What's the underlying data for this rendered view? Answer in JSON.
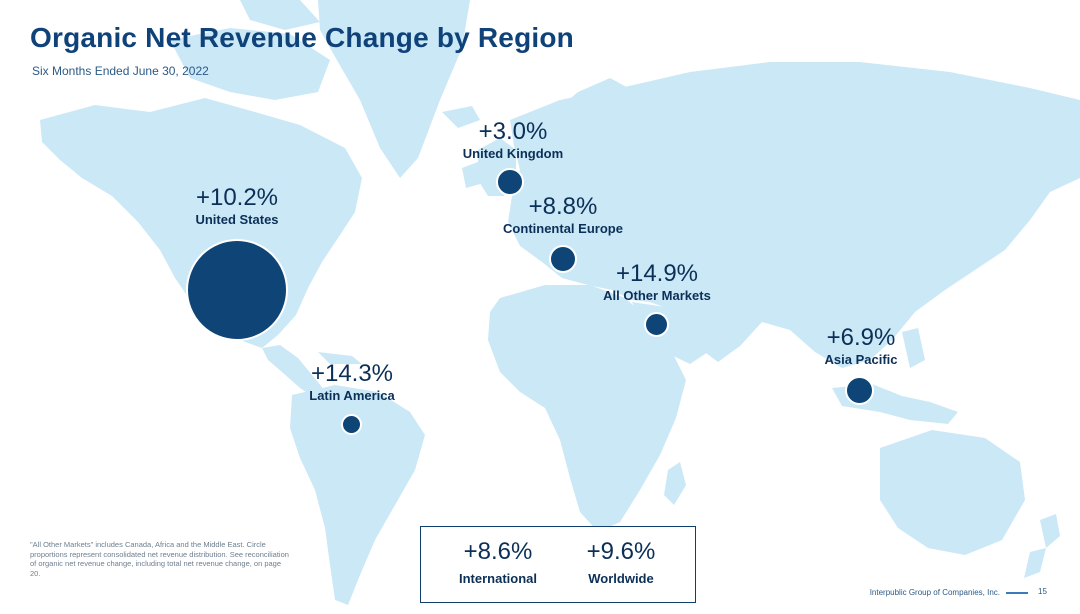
{
  "slide": {
    "title": "Organic Net Revenue Change by Region",
    "subtitle": "Six Months Ended June 30, 2022"
  },
  "regions": [
    {
      "id": "united-states",
      "name": "United States",
      "change": "+10.2%"
    },
    {
      "id": "united-kingdom",
      "name": "United Kingdom",
      "change": "+3.0%"
    },
    {
      "id": "continental-europe",
      "name": "Continental Europe",
      "change": "+8.8%"
    },
    {
      "id": "all-other-markets",
      "name": "All Other Markets",
      "change": "+14.9%"
    },
    {
      "id": "asia-pacific",
      "name": "Asia Pacific",
      "change": "+6.9%"
    },
    {
      "id": "latin-america",
      "name": "Latin America",
      "change": "+14.3%"
    }
  ],
  "totals": [
    {
      "name": "International",
      "change": "+8.6%"
    },
    {
      "name": "Worldwide",
      "change": "+9.6%"
    }
  ],
  "footnote": "\"All Other Markets\" includes Canada, Africa and the Middle East. Circle proportions represent consolidated net revenue distribution. See reconciliation of organic net revenue change, including total net revenue change, on page 20.",
  "footer": {
    "company": "Interpublic Group of Companies, Inc.",
    "page": "15"
  },
  "colors": {
    "land": "#cbe8f7",
    "bubble": "#0e4476",
    "title": "#10427a"
  }
}
